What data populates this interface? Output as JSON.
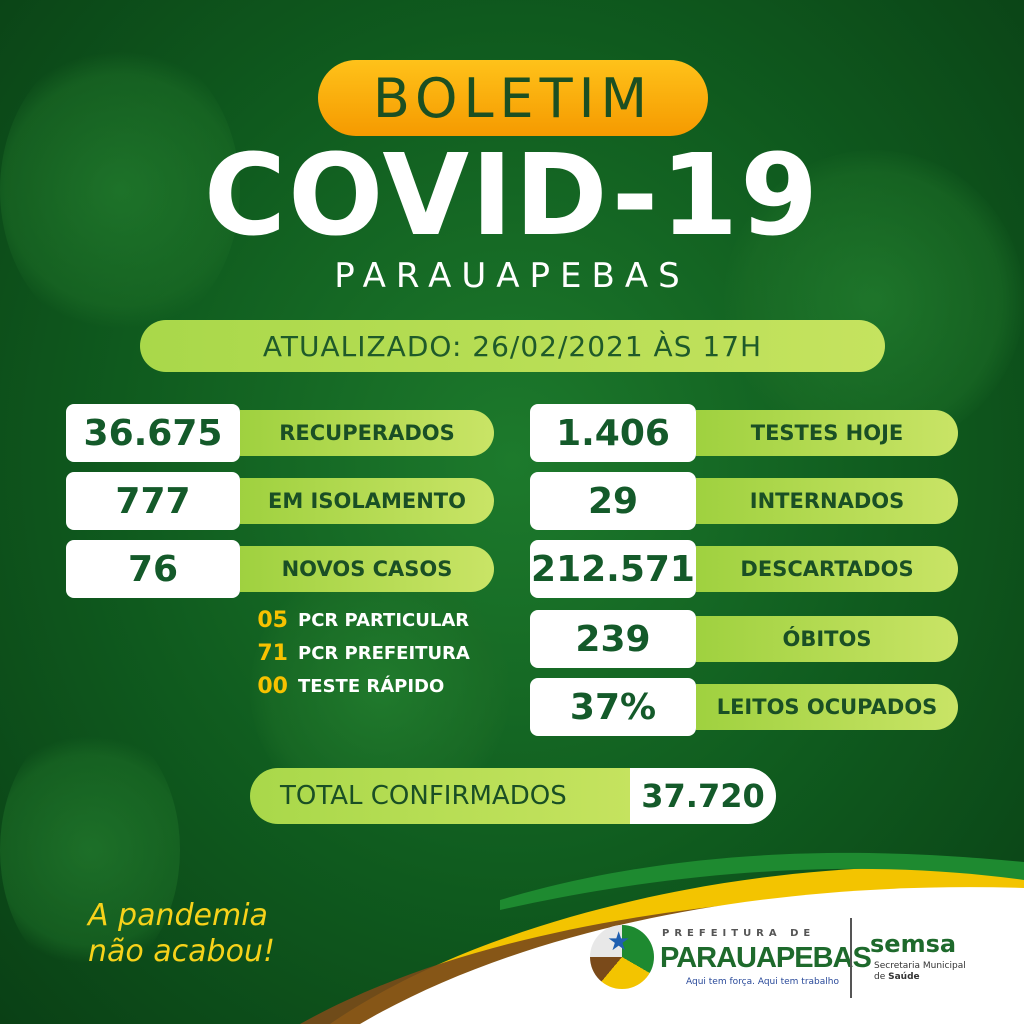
{
  "header": {
    "badge": "BOLETIM",
    "title": "COVID-19",
    "city": "PARAUAPEBAS",
    "updated": "ATUALIZADO: 26/02/2021 ÀS 17H"
  },
  "left_stats": [
    {
      "value": "36.675",
      "label": "RECUPERADOS"
    },
    {
      "value": "777",
      "label": "EM ISOLAMENTO"
    },
    {
      "value": "76",
      "label": "NOVOS CASOS"
    }
  ],
  "new_cases_breakdown": [
    {
      "value": "05",
      "label": "PCR PARTICULAR"
    },
    {
      "value": "71",
      "label": "PCR PREFEITURA"
    },
    {
      "value": "00",
      "label": "TESTE RÁPIDO"
    }
  ],
  "right_stats": [
    {
      "value": "1.406",
      "label": "TESTES HOJE"
    },
    {
      "value": "29",
      "label": "INTERNADOS"
    },
    {
      "value": "212.571",
      "label": "DESCARTADOS"
    },
    {
      "value": "239",
      "label": "ÓBITOS"
    },
    {
      "value": "37%",
      "label": "LEITOS OCUPADOS"
    }
  ],
  "total": {
    "label": "TOTAL CONFIRMADOS",
    "value": "37.720"
  },
  "slogan": {
    "line1": "A pandemia",
    "line2": "não acabou!"
  },
  "footer": {
    "prefeitura_small": "PREFEITURA DE",
    "prefeitura_name": "PARAUAPEBAS",
    "prefeitura_tagline": "Aqui tem força. Aqui tem trabalho",
    "semsa": "semsa",
    "semsa_line1": "Secretaria Municipal",
    "semsa_line2_prefix": "de ",
    "semsa_line2_bold": "Saúde"
  },
  "colors": {
    "background": "#0f5a1e",
    "accent_green": "#b5dc50",
    "badge_orange": "#f9ac0a",
    "number_text": "#145a2a",
    "highlight_yellow": "#f7c200"
  }
}
